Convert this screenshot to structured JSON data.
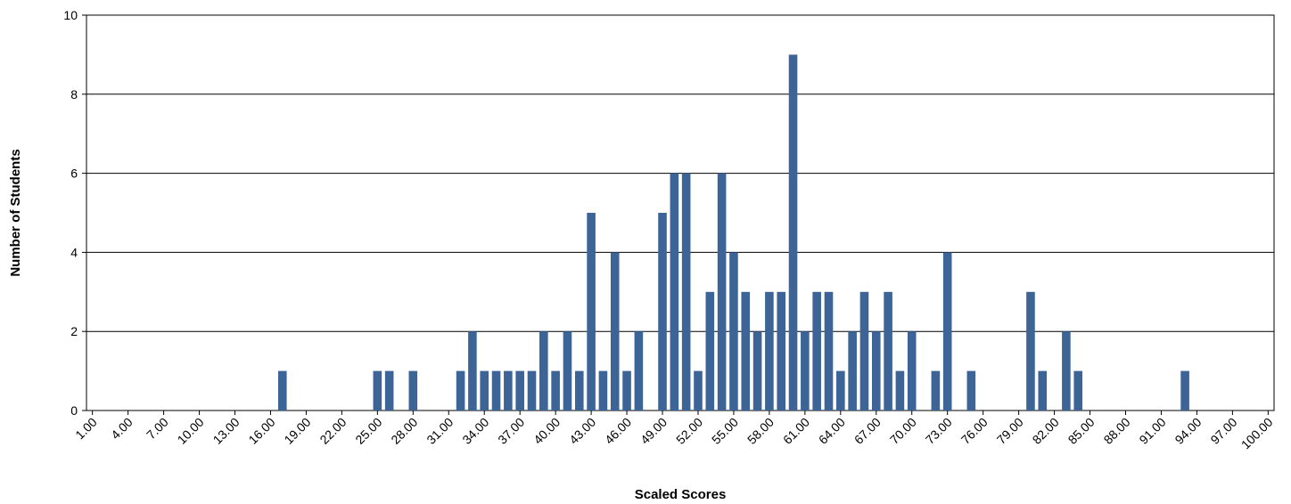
{
  "chart_data": {
    "type": "bar",
    "xlabel": "Scaled Scores",
    "ylabel": "Number of Students",
    "ylim": [
      0,
      10
    ],
    "yticks": [
      0,
      2,
      4,
      6,
      8,
      10
    ],
    "grid": true,
    "bar_color": "#3c6497",
    "categories": [
      1,
      2,
      3,
      4,
      5,
      6,
      7,
      8,
      9,
      10,
      11,
      12,
      13,
      14,
      15,
      16,
      17,
      18,
      19,
      20,
      21,
      22,
      23,
      24,
      25,
      26,
      27,
      28,
      29,
      30,
      31,
      32,
      33,
      34,
      35,
      36,
      37,
      38,
      39,
      40,
      41,
      42,
      43,
      44,
      45,
      46,
      47,
      48,
      49,
      50,
      51,
      52,
      53,
      54,
      55,
      56,
      57,
      58,
      59,
      60,
      61,
      62,
      63,
      64,
      65,
      66,
      67,
      68,
      69,
      70,
      71,
      72,
      73,
      74,
      75,
      76,
      77,
      78,
      79,
      80,
      81,
      82,
      83,
      84,
      85,
      86,
      87,
      88,
      89,
      90,
      91,
      92,
      93,
      94,
      95,
      96,
      97,
      98,
      99,
      100
    ],
    "values": [
      0,
      0,
      0,
      0,
      0,
      0,
      0,
      0,
      0,
      0,
      0,
      0,
      0,
      0,
      0,
      0,
      1,
      0,
      0,
      0,
      0,
      0,
      0,
      0,
      1,
      1,
      0,
      1,
      0,
      0,
      0,
      1,
      2,
      1,
      1,
      1,
      1,
      1,
      2,
      1,
      2,
      1,
      5,
      1,
      4,
      1,
      2,
      0,
      5,
      6,
      6,
      1,
      3,
      6,
      4,
      3,
      2,
      3,
      3,
      9,
      2,
      3,
      3,
      1,
      2,
      3,
      2,
      3,
      1,
      2,
      0,
      1,
      4,
      0,
      1,
      0,
      0,
      0,
      0,
      3,
      1,
      0,
      2,
      1,
      0,
      0,
      0,
      0,
      0,
      0,
      0,
      0,
      1,
      0,
      0,
      0,
      0,
      0,
      0,
      0
    ],
    "tick_labels": [
      "1.00",
      "4.00",
      "7.00",
      "10.00",
      "13.00",
      "16.00",
      "19.00",
      "22.00",
      "25.00",
      "28.00",
      "31.00",
      "34.00",
      "37.00",
      "40.00",
      "43.00",
      "46.00",
      "49.00",
      "52.00",
      "55.00",
      "58.00",
      "61.00",
      "64.00",
      "67.00",
      "70.00",
      "73.00",
      "76.00",
      "79.00",
      "82.00",
      "85.00",
      "88.00",
      "91.00",
      "94.00",
      "97.00",
      "100.00"
    ],
    "tick_categories": [
      1,
      4,
      7,
      10,
      13,
      16,
      19,
      22,
      25,
      28,
      31,
      34,
      37,
      40,
      43,
      46,
      49,
      52,
      55,
      58,
      61,
      64,
      67,
      70,
      73,
      76,
      79,
      82,
      85,
      88,
      91,
      94,
      97,
      100
    ]
  }
}
